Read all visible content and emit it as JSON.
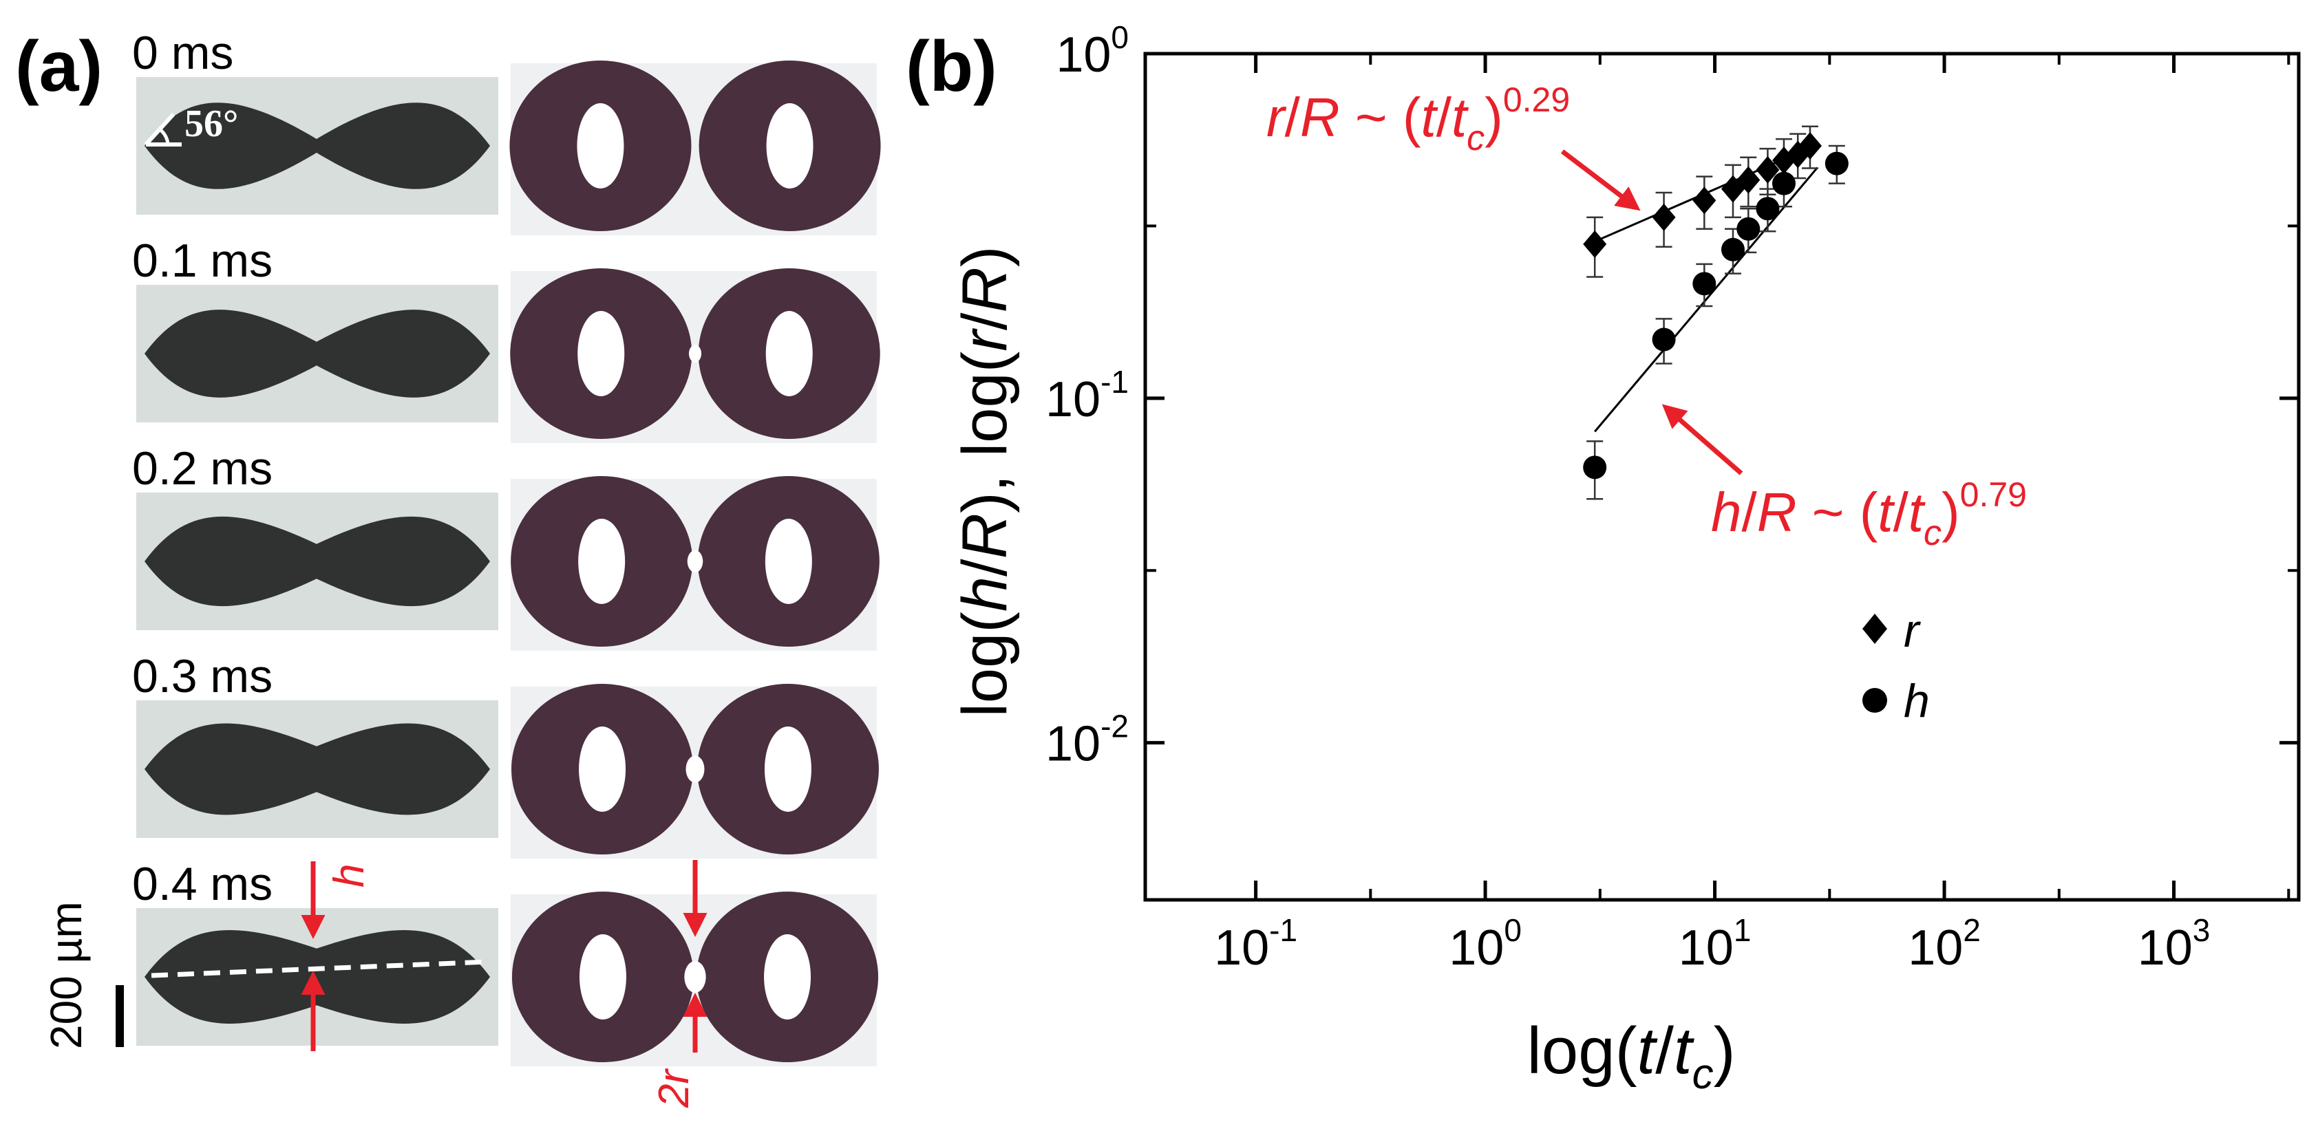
{
  "figure": {
    "panel_a_label": "(a)",
    "panel_b_label": "(b)"
  },
  "panel_a": {
    "frames": [
      {
        "time": "0 ms"
      },
      {
        "time": "0.1 ms"
      },
      {
        "time": "0.2 ms"
      },
      {
        "time": "0.3 ms"
      },
      {
        "time": "0.4 ms"
      }
    ],
    "angle_label": "56°",
    "h_label": "h",
    "r_label": "2r",
    "scale_bar_label": "200 µm",
    "colors": {
      "annotation": "#e8202a",
      "side_view_bg": "#d7dedb",
      "droplet_side": "#2f3230",
      "droplet_top": "#4a2f3e"
    },
    "neck_fraction": [
      0.05,
      0.14,
      0.24,
      0.34,
      0.44
    ]
  },
  "chart_data": {
    "type": "scatter",
    "xscale": "log",
    "yscale": "log",
    "xlim": [
      0.033,
      3500
    ],
    "ylim": [
      0.0035,
      1.0
    ],
    "xticks": [
      {
        "value": 0.1,
        "base": "10",
        "exp": "-1"
      },
      {
        "value": 1,
        "base": "10",
        "exp": "0"
      },
      {
        "value": 10,
        "base": "10",
        "exp": "1"
      },
      {
        "value": 100,
        "base": "10",
        "exp": "2"
      },
      {
        "value": 1000,
        "base": "10",
        "exp": "3"
      }
    ],
    "yticks": [
      {
        "value": 0.01,
        "base": "10",
        "exp": "-2"
      },
      {
        "value": 0.1,
        "base": "10",
        "exp": "-1"
      },
      {
        "value": 1,
        "base": "10",
        "exp": "0"
      }
    ],
    "xlabel": {
      "pre": "log(",
      "t": "t",
      "slash": "/",
      "tc": "t",
      "c": "c",
      "post": ")"
    },
    "ylabel": {
      "p1": "log(",
      "h": "h",
      "s1": "/",
      "R1": "R",
      "p2": "), log(",
      "r": "r",
      "s2": "/",
      "R2": "R",
      "p3": ")"
    },
    "series": [
      {
        "name": "r",
        "marker": "diamond",
        "x": [
          3,
          6,
          9,
          12,
          14,
          17,
          20,
          23,
          26
        ],
        "y": [
          0.28,
          0.335,
          0.375,
          0.405,
          0.43,
          0.46,
          0.49,
          0.51,
          0.54
        ],
        "yerr": [
          0.055,
          0.06,
          0.065,
          0.07,
          0.07,
          0.07,
          0.075,
          0.075,
          0.075
        ]
      },
      {
        "name": "h",
        "marker": "circle",
        "x": [
          3,
          6,
          9,
          12,
          14,
          17,
          20,
          34
        ],
        "y": [
          0.063,
          0.148,
          0.215,
          0.27,
          0.31,
          0.355,
          0.42,
          0.48
        ],
        "yerr": [
          0.012,
          0.022,
          0.03,
          0.04,
          0.045,
          0.05,
          0.06,
          0.06
        ]
      }
    ],
    "fit_lines": [
      {
        "name": "r-fit",
        "x0": 3,
        "x1": 28,
        "y0": 0.285,
        "slope": 0.29
      },
      {
        "name": "h-fit",
        "x0": 3,
        "x1": 28,
        "y0": 0.08,
        "slope": 0.79
      }
    ],
    "annotations": [
      {
        "name": "r-fit-label",
        "lhs": "r",
        "slash": "/",
        "R": "R",
        "sim": " ~ (",
        "t": "t",
        "s2": "/",
        "tc": "t",
        "c": "c",
        "close": ")",
        "exp": "0.29"
      },
      {
        "name": "h-fit-label",
        "lhs": "h",
        "slash": "/",
        "R": "R",
        "sim": " ~ (",
        "t": "t",
        "s2": "/",
        "tc": "t",
        "c": "c",
        "close": ")",
        "exp": "0.79"
      }
    ],
    "legend": [
      {
        "name": "r",
        "marker": "diamond",
        "label": "r"
      },
      {
        "name": "h",
        "marker": "circle",
        "label": "h"
      }
    ],
    "colors": {
      "marker": "#000000",
      "annotation": "#e8202a",
      "axis": "#000000"
    }
  }
}
